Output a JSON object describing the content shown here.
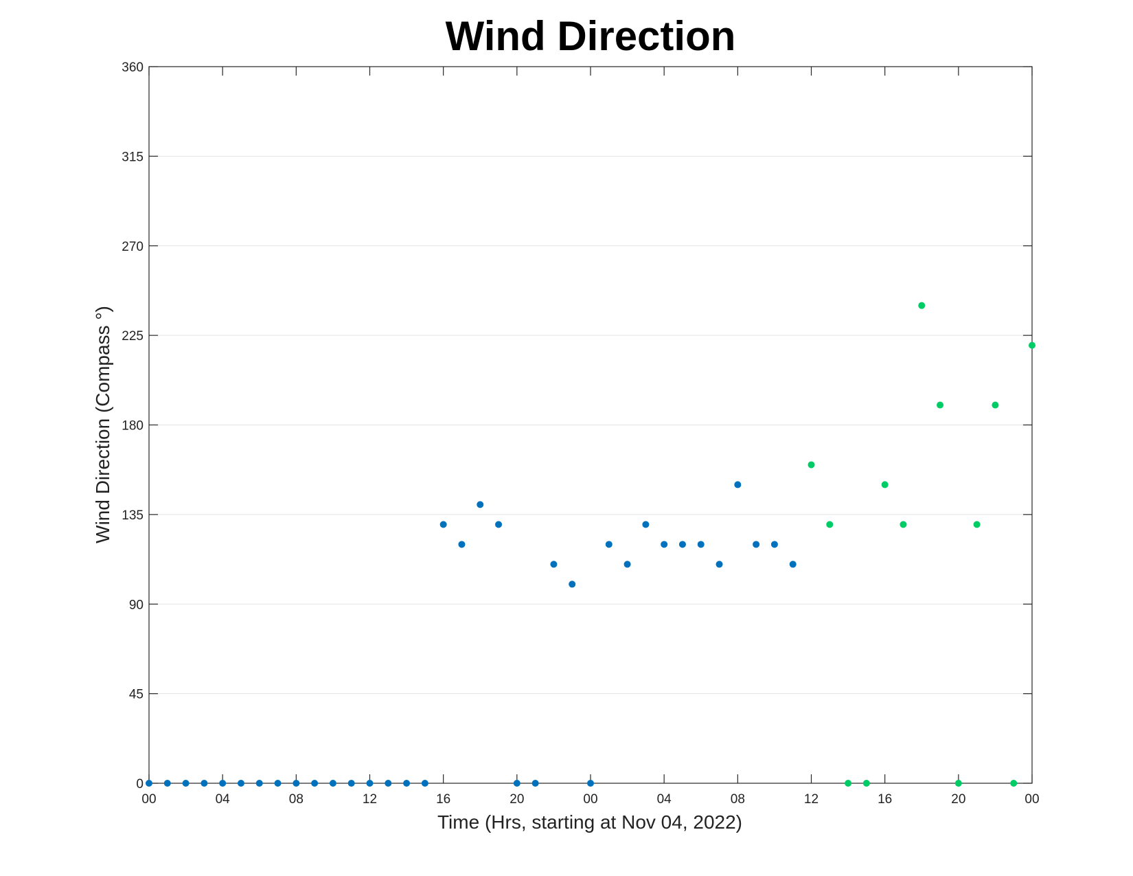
{
  "chart_data": {
    "type": "scatter",
    "title": "Wind Direction",
    "xlabel": "Time (Hrs, starting at Nov 04, 2022)",
    "ylabel": "Wind Direction (Compass °)",
    "ylim": [
      0,
      360
    ],
    "xlim": [
      "2022-11-04 00:00",
      "2022-11-06 00:00"
    ],
    "yticks": [
      "0",
      "45",
      "90",
      "135",
      "180",
      "225",
      "270",
      "315",
      "360"
    ],
    "xticks": [
      "00",
      "04",
      "08",
      "12",
      "16",
      "20",
      "00",
      "04",
      "08",
      "12",
      "16",
      "20",
      "00"
    ],
    "grid": "horizontal",
    "series": [
      {
        "color": "#0072bd",
        "points": [
          [
            "2022-11-04 00:00",
            0
          ],
          [
            "2022-11-04 01:00",
            0
          ],
          [
            "2022-11-04 02:00",
            0
          ],
          [
            "2022-11-04 03:00",
            0
          ],
          [
            "2022-11-04 04:00",
            0
          ],
          [
            "2022-11-04 05:00",
            0
          ],
          [
            "2022-11-04 06:00",
            0
          ],
          [
            "2022-11-04 07:00",
            0
          ],
          [
            "2022-11-04 08:00",
            0
          ],
          [
            "2022-11-04 09:00",
            0
          ],
          [
            "2022-11-04 10:00",
            0
          ],
          [
            "2022-11-04 11:00",
            0
          ],
          [
            "2022-11-04 12:00",
            0
          ],
          [
            "2022-11-04 13:00",
            0
          ],
          [
            "2022-11-04 14:00",
            0
          ],
          [
            "2022-11-04 15:00",
            0
          ],
          [
            "2022-11-04 16:00",
            130
          ],
          [
            "2022-11-04 17:00",
            120
          ],
          [
            "2022-11-04 18:00",
            140
          ],
          [
            "2022-11-04 19:00",
            130
          ],
          [
            "2022-11-04 20:00",
            0
          ],
          [
            "2022-11-04 21:00",
            0
          ],
          [
            "2022-11-04 22:00",
            110
          ],
          [
            "2022-11-04 23:00",
            100
          ],
          [
            "2022-11-05 00:00",
            0
          ],
          [
            "2022-11-05 01:00",
            120
          ],
          [
            "2022-11-05 02:00",
            110
          ],
          [
            "2022-11-05 03:00",
            130
          ],
          [
            "2022-11-05 04:00",
            120
          ],
          [
            "2022-11-05 05:00",
            120
          ],
          [
            "2022-11-05 06:00",
            120
          ],
          [
            "2022-11-05 07:00",
            110
          ],
          [
            "2022-11-05 08:00",
            150
          ],
          [
            "2022-11-05 09:00",
            120
          ],
          [
            "2022-11-05 10:00",
            120
          ],
          [
            "2022-11-05 11:00",
            110
          ]
        ]
      },
      {
        "color": "#00cc66",
        "points": [
          [
            "2022-11-05 12:00",
            160
          ],
          [
            "2022-11-05 13:00",
            130
          ],
          [
            "2022-11-05 14:00",
            0
          ],
          [
            "2022-11-05 15:00",
            0
          ],
          [
            "2022-11-05 16:00",
            150
          ],
          [
            "2022-11-05 17:00",
            130
          ],
          [
            "2022-11-05 18:00",
            240
          ],
          [
            "2022-11-05 19:00",
            190
          ],
          [
            "2022-11-05 20:00",
            0
          ],
          [
            "2022-11-05 21:00",
            130
          ],
          [
            "2022-11-05 22:00",
            190
          ],
          [
            "2022-11-05 23:00",
            0
          ],
          [
            "2022-11-06 00:00",
            220
          ]
        ]
      }
    ]
  }
}
